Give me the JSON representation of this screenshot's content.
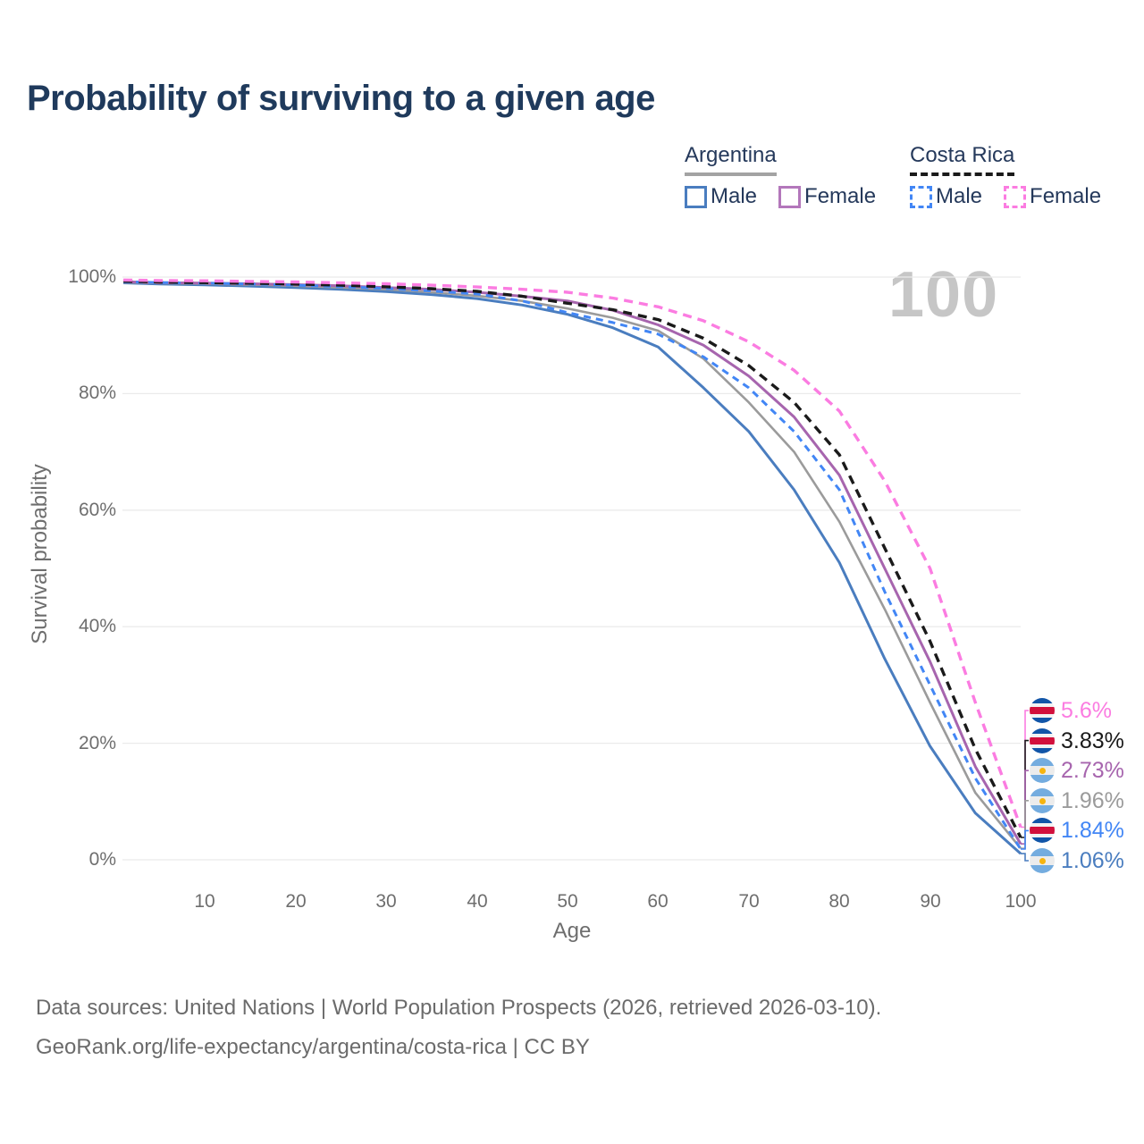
{
  "title": "Probability of surviving to a given age",
  "watermark": "100",
  "legend": {
    "argentina": {
      "label": "Argentina",
      "male": "Male",
      "female": "Female"
    },
    "costa_rica": {
      "label": "Costa Rica",
      "male": "Male",
      "female": "Female"
    }
  },
  "colors": {
    "title": "#1f3a5c",
    "axis_text": "#6e6e6e",
    "gridline": "#ebebeb",
    "watermark": "#c6c6c6",
    "argentina_male": "#4a7dbf",
    "argentina_female": "#a765ae",
    "argentina_total": "#9b9b9b",
    "costa_rica_male": "#4286f5",
    "costa_rica_female": "#fb7ce1",
    "costa_rica_total": "#1a1a1a"
  },
  "chart_data": {
    "type": "line",
    "title": "Probability of surviving to a given age",
    "xlabel": "Age",
    "ylabel": "Survival probability",
    "xlim": [
      0,
      100
    ],
    "ylim": [
      0,
      100
    ],
    "grid": "horizontal",
    "legend_position": "top-right",
    "x_ticks": [
      10,
      20,
      30,
      40,
      50,
      60,
      70,
      80,
      90,
      100
    ],
    "y_tick_values": [
      0,
      20,
      40,
      60,
      80,
      100
    ],
    "y_tick_labels": [
      "0%",
      "20%",
      "40%",
      "60%",
      "80%",
      "100%"
    ],
    "ages": [
      1,
      5,
      10,
      15,
      20,
      25,
      30,
      35,
      40,
      45,
      50,
      55,
      60,
      65,
      70,
      75,
      80,
      85,
      90,
      95,
      100
    ],
    "series": [
      {
        "id": "argentina-male",
        "name": "Argentina Male",
        "country": "Argentina",
        "sex": "Male",
        "color": "#4a7dbf",
        "dash": null,
        "width": 3,
        "values": [
          99.0,
          98.8,
          98.65,
          98.45,
          98.2,
          97.9,
          97.5,
          97.0,
          96.3,
          95.2,
          93.6,
          91.3,
          88.0,
          81.0,
          73.5,
          63.5,
          51.0,
          34.5,
          19.5,
          8.0,
          1.06
        ],
        "end_value_label": "1.06%"
      },
      {
        "id": "argentina-total",
        "name": "Argentina",
        "country": "Argentina",
        "sex": "Both",
        "color": "#9b9b9b",
        "dash": null,
        "width": 2.6,
        "values": [
          99.1,
          98.95,
          98.85,
          98.7,
          98.5,
          98.2,
          97.9,
          97.4,
          96.8,
          95.9,
          94.6,
          93.0,
          90.8,
          86.0,
          78.5,
          70.0,
          58.0,
          43.0,
          27.0,
          11.5,
          1.96
        ],
        "end_value_label": "1.96%"
      },
      {
        "id": "argentina-female",
        "name": "Argentina Female",
        "country": "Argentina",
        "sex": "Female",
        "color": "#a765ae",
        "dash": null,
        "width": 3,
        "values": [
          99.2,
          99.05,
          98.95,
          98.85,
          98.7,
          98.5,
          98.2,
          97.9,
          97.4,
          96.7,
          95.9,
          94.3,
          91.8,
          88.3,
          83.0,
          76.0,
          66.0,
          50.0,
          34.0,
          16.0,
          2.73
        ],
        "end_value_label": "2.73%"
      },
      {
        "id": "costa-rica-male",
        "name": "Costa Rica Male",
        "country": "Costa Rica",
        "sex": "Male",
        "color": "#4286f5",
        "dash": "8 6",
        "width": 3,
        "values": [
          99.2,
          99.05,
          98.95,
          98.8,
          98.6,
          98.35,
          98.05,
          97.6,
          97.1,
          95.9,
          93.9,
          92.2,
          90.2,
          86.3,
          81.0,
          73.5,
          63.5,
          46.0,
          30.0,
          14.0,
          1.84
        ],
        "end_value_label": "1.84%"
      },
      {
        "id": "costa-rica-total",
        "name": "Costa Rica",
        "country": "Costa Rica",
        "sex": "Both",
        "color": "#1a1a1a",
        "dash": "10 7",
        "width": 3.4,
        "values": [
          99.3,
          99.15,
          99.05,
          98.95,
          98.8,
          98.6,
          98.35,
          98.0,
          97.55,
          96.7,
          95.5,
          94.4,
          92.7,
          89.5,
          84.8,
          78.5,
          69.5,
          53.5,
          37.5,
          19.0,
          3.83
        ],
        "end_value_label": "3.83%"
      },
      {
        "id": "costa-rica-female",
        "name": "Costa Rica Female",
        "country": "Costa Rica",
        "sex": "Female",
        "color": "#fb7ce1",
        "dash": "10 7",
        "width": 3.4,
        "values": [
          99.5,
          99.4,
          99.35,
          99.25,
          99.15,
          99.0,
          98.85,
          98.6,
          98.3,
          97.9,
          97.4,
          96.4,
          94.9,
          92.5,
          88.9,
          84.0,
          77.0,
          65.0,
          50.0,
          27.0,
          5.6
        ],
        "end_value_label": "5.6%"
      }
    ],
    "end_labels": [
      {
        "series": "costa-rica-female",
        "value": "5.6%",
        "color": "#fb7ce1",
        "flag": "costa-rica"
      },
      {
        "series": "costa-rica-total",
        "value": "3.83%",
        "color": "#1a1a1a",
        "flag": "costa-rica"
      },
      {
        "series": "argentina-female",
        "value": "2.73%",
        "color": "#a765ae",
        "flag": "argentina"
      },
      {
        "series": "argentina-total",
        "value": "1.96%",
        "color": "#9b9b9b",
        "flag": "argentina"
      },
      {
        "series": "costa-rica-male",
        "value": "1.84%",
        "color": "#4286f5",
        "flag": "costa-rica"
      },
      {
        "series": "argentina-male",
        "value": "1.06%",
        "color": "#4a7dbf",
        "flag": "argentina"
      }
    ]
  },
  "footer": {
    "line1": "Data sources: United Nations | World Population Prospects (2026, retrieved 2026-03-10).",
    "line2": "GeoRank.org/life-expectancy/argentina/costa-rica | CC BY"
  }
}
